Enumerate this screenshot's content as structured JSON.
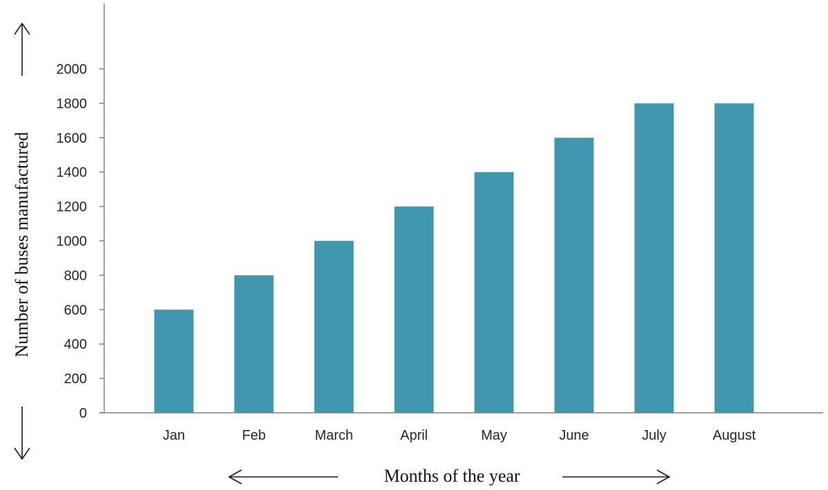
{
  "chart_data": {
    "type": "bar",
    "title": "",
    "xlabel": "Months of the year",
    "ylabel": "Number of buses manufactured",
    "categories": [
      "Jan",
      "Feb",
      "March",
      "April",
      "May",
      "June",
      "July",
      "August"
    ],
    "values": [
      600,
      800,
      1000,
      1200,
      1400,
      1600,
      1800,
      1800
    ],
    "ylim": [
      0,
      2000
    ],
    "yticks": [
      "0",
      "200",
      "400",
      "600",
      "800",
      "1000",
      "1200",
      "1400",
      "1600",
      "1800",
      "2000"
    ],
    "grid": false,
    "legend": "none",
    "bar_color": "#4197B0",
    "axis_color": "#808080",
    "arrow_color": "#1a1a1a"
  }
}
